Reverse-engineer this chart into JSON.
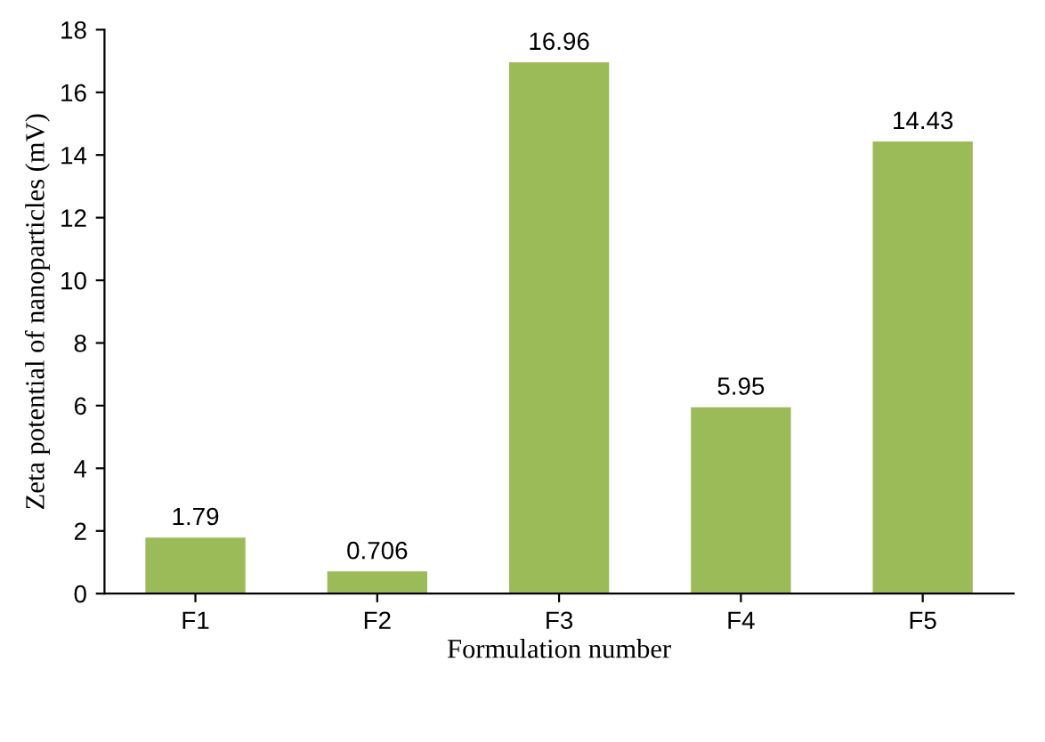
{
  "chart_data": {
    "type": "bar",
    "xlabel": "Formulation number",
    "ylabel": "Zeta potential of nanoparticles (mV)",
    "categories": [
      "F1",
      "F2",
      "F3",
      "F4",
      "F5"
    ],
    "values": [
      1.79,
      0.706,
      16.96,
      5.95,
      14.43
    ],
    "color": "#9bbb59",
    "ylim": [
      0,
      18
    ],
    "yticks": [
      0,
      2,
      4,
      6,
      8,
      10,
      12,
      14,
      16,
      18
    ],
    "data_labels": true
  }
}
